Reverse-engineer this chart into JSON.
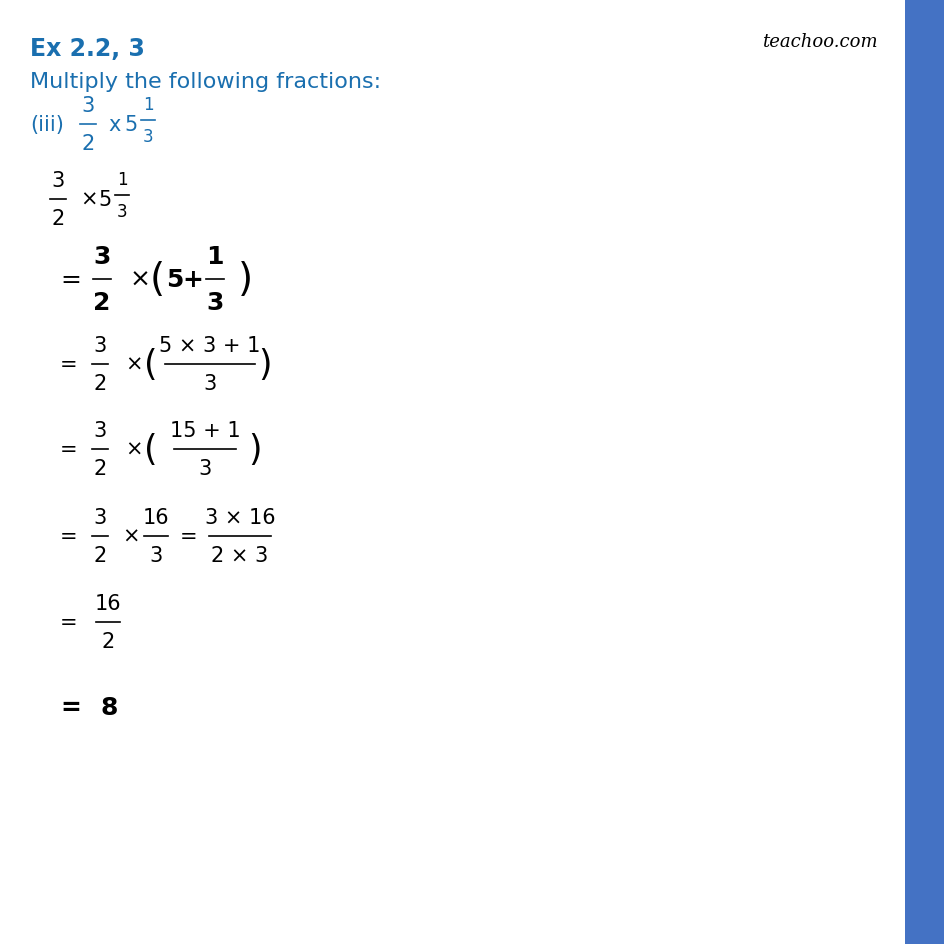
{
  "title": "Ex 2.2, 3",
  "subtitle": "Multiply the following fractions:",
  "watermark": "teachoo.com",
  "blue_color": "#1a6faf",
  "black": "#000000",
  "bg_color": "#ffffff",
  "right_bar_color": "#4472c4",
  "title_fontsize": 17,
  "subtitle_fontsize": 16,
  "math_fontsize": 15,
  "math_fontsize_large": 18
}
